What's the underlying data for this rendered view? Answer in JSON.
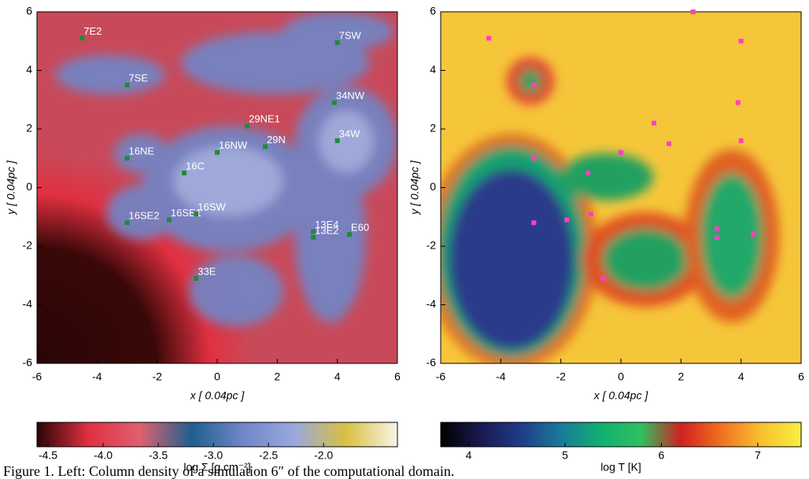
{
  "chart_data": [
    {
      "type": "scatter",
      "xlabel": "x [ 0.04pc ]",
      "ylabel": "y [ 0.04pc ]",
      "xlim": [
        -6,
        6
      ],
      "ylim": [
        -6,
        6
      ],
      "xticks": [
        -6,
        -4,
        -2,
        0,
        2,
        4,
        6
      ],
      "yticks": [
        -6,
        -4,
        -2,
        0,
        2,
        4,
        6
      ],
      "color": "#1f8a3a",
      "points": {
        "labels": [
          "7E2",
          "7SE",
          "7SW",
          "34NW",
          "29NE1",
          "29N",
          "34W",
          "16NE",
          "16NW",
          "16C",
          "16SE2",
          "16SE1",
          "16SW",
          "13E4",
          "13E2",
          "E60",
          "33E"
        ],
        "x": [
          -4.5,
          -3,
          4,
          3.9,
          1,
          1.6,
          4,
          -3,
          0,
          -1.1,
          -3,
          -1.6,
          -0.7,
          3.2,
          3.2,
          4.4,
          -0.7
        ],
        "y": [
          5.1,
          3.5,
          4.95,
          2.9,
          2.1,
          1.4,
          1.6,
          1,
          1.2,
          0.5,
          -1.2,
          -1.1,
          -0.9,
          -1.5,
          -1.7,
          -1.6,
          -3.1
        ]
      },
      "colorbar": {
        "label": "log Σ [g cm⁻²]",
        "lim": [
          -4.6,
          -1.33
        ],
        "ticks": [
          -4.5,
          {
            "value": -4,
            "label": "-4.0"
          },
          -3.5,
          {
            "value": -3,
            "label": "-3.0"
          },
          -2.5,
          {
            "value": -2,
            "label": "-2.0"
          }
        ],
        "colors": [
          "#2a0505",
          "#e03040",
          "#e06070",
          "#1f5f8f",
          "#6f86c8",
          "#9aa8dd",
          "#d8c040",
          "#f8f4e8"
        ]
      }
    },
    {
      "type": "scatter",
      "xlabel": "x [ 0.04pc ]",
      "ylabel": "y [ 0.04pc ]",
      "xlim": [
        -6,
        6
      ],
      "ylim": [
        -6,
        6
      ],
      "xticks": [
        -6,
        -4,
        -2,
        0,
        2,
        4,
        6
      ],
      "yticks": [
        -6,
        -4,
        -2,
        0,
        2,
        4,
        6
      ],
      "color": "#ff3fbf",
      "points": {
        "x": [
          -4.4,
          -2.9,
          4,
          3.9,
          1.1,
          1.6,
          4,
          -2.9,
          0,
          -1.1,
          -2.9,
          -1.8,
          -1,
          3.2,
          3.2,
          4.4,
          -0.6,
          2.4
        ],
        "y": [
          5.1,
          3.5,
          5,
          2.9,
          2.2,
          1.5,
          1.6,
          1,
          1.2,
          0.5,
          -1.2,
          -1.1,
          -0.9,
          -1.4,
          -1.7,
          -1.6,
          -3.1,
          6
        ]
      },
      "colorbar": {
        "label": "log T [K]",
        "lim": [
          3.71,
          7.45
        ],
        "ticks": [
          4,
          5,
          6,
          7
        ],
        "colors": [
          "#000000",
          "#1a1850",
          "#1f3c88",
          "#1a7a9a",
          "#10b070",
          "#30c060",
          "#d02020",
          "#f07020",
          "#f8c030",
          "#f8f040"
        ]
      }
    }
  ],
  "caption": "Figure 1. Left: Column density of a simulation 6″ of the computational domain."
}
